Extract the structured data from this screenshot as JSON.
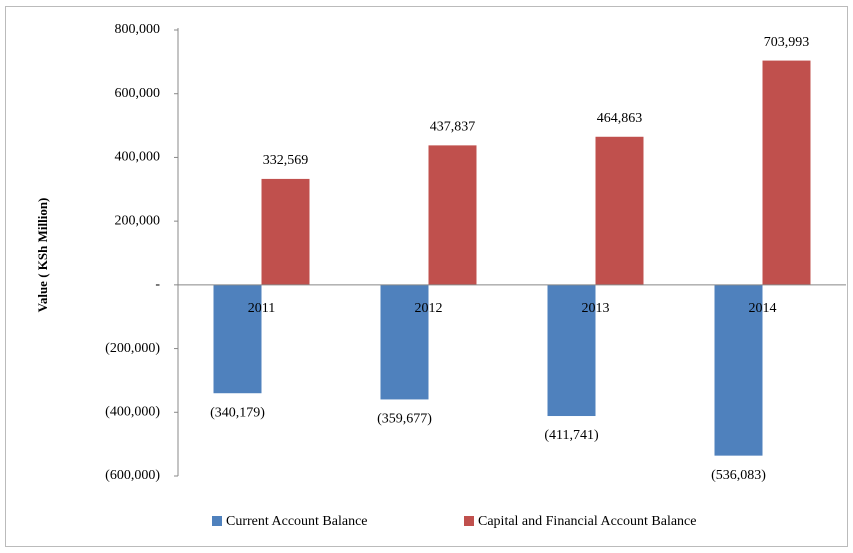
{
  "chart_data": {
    "type": "bar",
    "y_label": "Value ( KSh Million)",
    "categories": [
      "2011",
      "2012",
      "2013",
      "2014"
    ],
    "series": [
      {
        "name": "Current Account Balance",
        "color": "#4f81bd",
        "values": [
          -340179,
          -359677,
          -411741,
          -536083
        ],
        "value_labels": [
          "(340,179)",
          "(359,677)",
          "(411,741)",
          "(536,083)"
        ]
      },
      {
        "name": "Capital and Financial Account Balance",
        "color": "#c0504d",
        "values": [
          332569,
          437837,
          464863,
          703993
        ],
        "value_labels": [
          "332,569",
          "437,837",
          "464,863",
          "703,993"
        ]
      }
    ],
    "ylim": [
      -600000,
      800000
    ],
    "yticks": [
      {
        "value": 800000,
        "label": "800,000"
      },
      {
        "value": 600000,
        "label": "600,000"
      },
      {
        "value": 400000,
        "label": "400,000"
      },
      {
        "value": 200000,
        "label": "200,000"
      },
      {
        "value": 0,
        "label": "-"
      },
      {
        "value": -200000,
        "label": "(200,000)"
      },
      {
        "value": -400000,
        "label": "(400,000)"
      },
      {
        "value": -600000,
        "label": "(600,000)"
      }
    ],
    "legend": "bottom"
  }
}
